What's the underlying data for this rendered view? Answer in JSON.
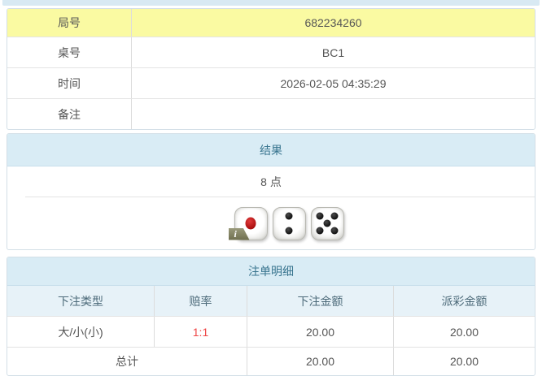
{
  "game_info": {
    "rows": [
      {
        "label": "局号",
        "value": "682234260"
      },
      {
        "label": "桌号",
        "value": "BC1"
      },
      {
        "label": "时间",
        "value": "2026-02-05 04:35:29"
      },
      {
        "label": "备注",
        "value": ""
      }
    ]
  },
  "result": {
    "title": "结果",
    "points": "8 点",
    "dice": [
      1,
      2,
      5
    ],
    "info_icon": "i"
  },
  "bet_details": {
    "title": "注单明细",
    "columns": [
      "下注类型",
      "赔率",
      "下注金额",
      "派彩金额"
    ],
    "rows": [
      {
        "type": "大/小(小)",
        "odds": "1:1",
        "bet_amount": "20.00",
        "payout_amount": "20.00"
      }
    ],
    "total": {
      "label": "总计",
      "bet_amount": "20.00",
      "payout_amount": "20.00"
    }
  },
  "colors": {
    "section_header_bg": "#d9ecf5",
    "section_header_text": "#39758f",
    "column_header_bg": "#e7f2f8",
    "highlight_row_bg": "#fafaa2",
    "odds_text": "#ef4747",
    "top_bar_bg": "#d8e9f3"
  }
}
